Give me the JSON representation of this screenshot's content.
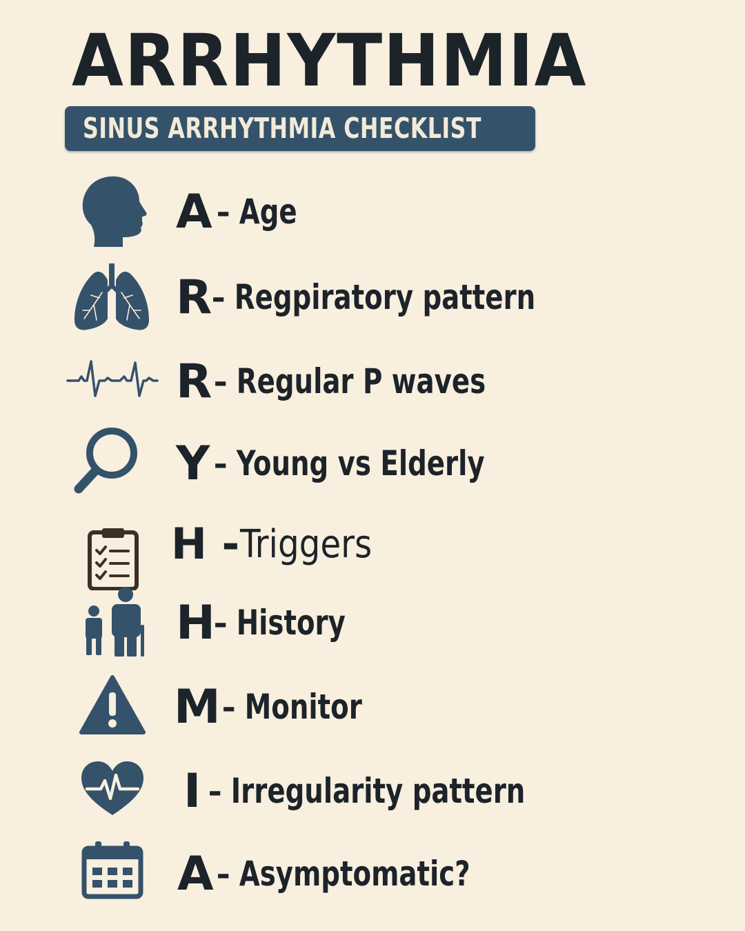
{
  "title": "ARRHYTHMIA",
  "subtitle": "SINUS ARRHYTHMIA CHECKLIST",
  "colors": {
    "background": "#f8efdf",
    "icon_blue": "#34526a",
    "text_dark": "#1c2329",
    "banner": "#34526a",
    "clipboard_brown": "#3d2f26"
  },
  "items": [
    {
      "icon": "head-profile-icon",
      "letter": "A",
      "label": "– Age"
    },
    {
      "icon": "lungs-icon",
      "letter": "R",
      "label": "– Regpiratory pattern"
    },
    {
      "icon": "ecg-waveform-icon",
      "letter": "R",
      "label": "– Regular P waves"
    },
    {
      "icon": "magnifying-glass-icon",
      "letter": "Y",
      "label": "– Young vs Elderly"
    },
    {
      "icon": "clipboard-checklist-icon",
      "letter": "H -",
      "label": "Triggers"
    },
    {
      "icon": "child-and-elderly-icon",
      "letter": "H",
      "label": "– History"
    },
    {
      "icon": "warning-triangle-icon",
      "letter": "M",
      "label": "– Monitor"
    },
    {
      "icon": "heart-pulse-icon",
      "letter": "I",
      "label": "– Irregularity pattern"
    },
    {
      "icon": "calendar-icon",
      "letter": "A",
      "label": "– Asymptomatic?"
    }
  ]
}
